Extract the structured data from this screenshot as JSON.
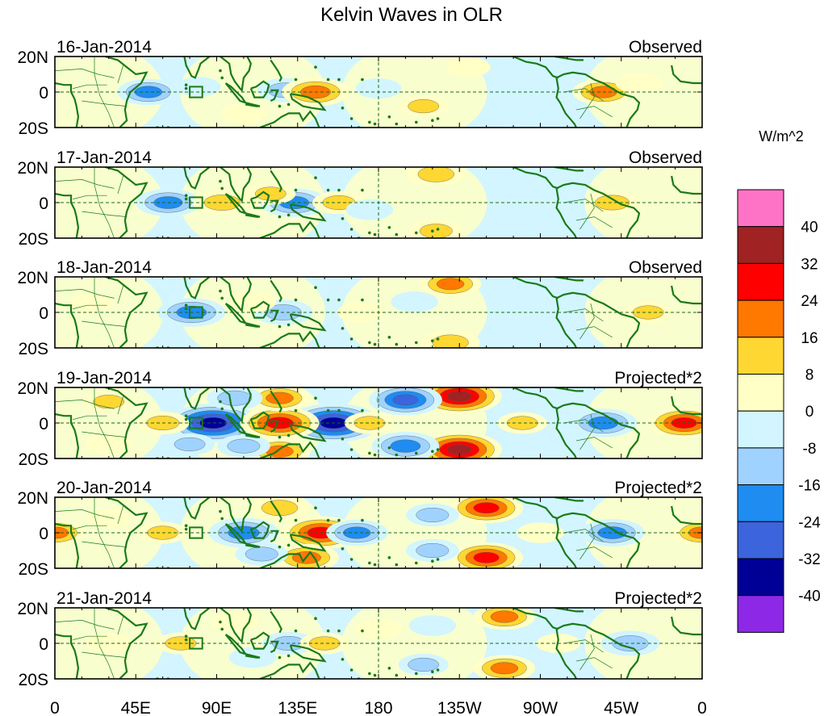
{
  "chart_data": {
    "type": "heatmap",
    "title": "Kelvin Waves in OLR",
    "units": "W/m^2",
    "x_tick_labels": [
      "0",
      "45E",
      "90E",
      "135E",
      "180",
      "135W",
      "90W",
      "45W",
      "0"
    ],
    "x_tick_values_deg": [
      0,
      45,
      90,
      135,
      180,
      225,
      270,
      315,
      360
    ],
    "xlim_deg": [
      0,
      360
    ],
    "y_tick_labels": [
      "20N",
      "0",
      "20S"
    ],
    "y_tick_values_deg": [
      20,
      0,
      -20
    ],
    "ylim_deg": [
      -20,
      20
    ],
    "colorbar": {
      "levels": [
        "40",
        "32",
        "24",
        "16",
        "8",
        "0",
        "-8",
        "-16",
        "-24",
        "-32",
        "-40"
      ],
      "colors": [
        "#ff73c7",
        "#a02222",
        "#ff0000",
        "#ff7800",
        "#ffd733",
        "#ffffc6",
        "#d2f5ff",
        "#a0d2ff",
        "#1e8cf0",
        "#3c64dc",
        "#000096",
        "#8c28e6"
      ]
    },
    "panels": [
      {
        "date": "16-Jan-2014",
        "label": "Observed",
        "anomalies": [
          {
            "lon": 52,
            "lat": 0,
            "value": -18
          },
          {
            "lon": 128,
            "lat": 1,
            "value": -14
          },
          {
            "lon": 145,
            "lat": 0,
            "value": 22
          },
          {
            "lon": 105,
            "lat": -12,
            "value": 8
          },
          {
            "lon": 205,
            "lat": -8,
            "value": 10
          },
          {
            "lon": 230,
            "lat": 14,
            "value": 6
          },
          {
            "lon": 305,
            "lat": 0,
            "value": 18
          },
          {
            "lon": 325,
            "lat": 5,
            "value": 8
          },
          {
            "lon": 180,
            "lat": 2,
            "value": -7
          },
          {
            "lon": 80,
            "lat": 3,
            "value": -6
          }
        ]
      },
      {
        "date": "17-Jan-2014",
        "label": "Observed",
        "anomalies": [
          {
            "lon": 63,
            "lat": 0,
            "value": -20
          },
          {
            "lon": 93,
            "lat": 0,
            "value": 16
          },
          {
            "lon": 133,
            "lat": 0,
            "value": -22
          },
          {
            "lon": 120,
            "lat": 5,
            "value": 10
          },
          {
            "lon": 158,
            "lat": 0,
            "value": 12
          },
          {
            "lon": 212,
            "lat": 16,
            "value": 16
          },
          {
            "lon": 212,
            "lat": -16,
            "value": 12
          },
          {
            "lon": 310,
            "lat": 0,
            "value": 14
          },
          {
            "lon": 270,
            "lat": 2,
            "value": -7
          },
          {
            "lon": 175,
            "lat": -4,
            "value": -8
          }
        ]
      },
      {
        "date": "18-Jan-2014",
        "label": "Observed",
        "anomalies": [
          {
            "lon": 76,
            "lat": 0,
            "value": -22
          },
          {
            "lon": 127,
            "lat": 0,
            "value": -16
          },
          {
            "lon": 110,
            "lat": 6,
            "value": 8
          },
          {
            "lon": 220,
            "lat": 16,
            "value": 18
          },
          {
            "lon": 220,
            "lat": -17,
            "value": 16
          },
          {
            "lon": 170,
            "lat": 0,
            "value": 8
          },
          {
            "lon": 330,
            "lat": 0,
            "value": 10
          },
          {
            "lon": 200,
            "lat": 6,
            "value": -8
          },
          {
            "lon": 20,
            "lat": 5,
            "value": 6
          },
          {
            "lon": 270,
            "lat": -5,
            "value": -6
          }
        ]
      },
      {
        "date": "19-Jan-2014",
        "label": "Projected*2",
        "anomalies": [
          {
            "lon": 88,
            "lat": 0,
            "value": -40
          },
          {
            "lon": 155,
            "lat": 0,
            "value": -40
          },
          {
            "lon": 125,
            "lat": 0,
            "value": 30
          },
          {
            "lon": 125,
            "lat": 14,
            "value": 18
          },
          {
            "lon": 125,
            "lat": -16,
            "value": 18
          },
          {
            "lon": 225,
            "lat": 15,
            "value": 34
          },
          {
            "lon": 225,
            "lat": -15,
            "value": 34
          },
          {
            "lon": 195,
            "lat": 13,
            "value": -26
          },
          {
            "lon": 195,
            "lat": -13,
            "value": -22
          },
          {
            "lon": 305,
            "lat": 0,
            "value": -22
          },
          {
            "lon": 350,
            "lat": 0,
            "value": 26
          },
          {
            "lon": 100,
            "lat": 14,
            "value": -14
          },
          {
            "lon": 105,
            "lat": -13,
            "value": -12
          },
          {
            "lon": 60,
            "lat": 0,
            "value": 12
          },
          {
            "lon": 30,
            "lat": 12,
            "value": 10
          },
          {
            "lon": 30,
            "lat": -12,
            "value": 8
          },
          {
            "lon": 260,
            "lat": 0,
            "value": 10
          },
          {
            "lon": 175,
            "lat": 0,
            "value": 10
          },
          {
            "lon": 75,
            "lat": -12,
            "value": -10
          }
        ]
      },
      {
        "date": "20-Jan-2014",
        "label": "Projected*2",
        "anomalies": [
          {
            "lon": 105,
            "lat": 0,
            "value": -24
          },
          {
            "lon": 148,
            "lat": 0,
            "value": 30
          },
          {
            "lon": 140,
            "lat": -14,
            "value": 20
          },
          {
            "lon": 125,
            "lat": 14,
            "value": 16
          },
          {
            "lon": 240,
            "lat": 14,
            "value": 26
          },
          {
            "lon": 240,
            "lat": -14,
            "value": 26
          },
          {
            "lon": 0,
            "lat": 0,
            "value": 18
          },
          {
            "lon": 360,
            "lat": 0,
            "value": 18
          },
          {
            "lon": 310,
            "lat": 0,
            "value": -20
          },
          {
            "lon": 168,
            "lat": 0,
            "value": -18
          },
          {
            "lon": 210,
            "lat": 10,
            "value": -12
          },
          {
            "lon": 210,
            "lat": -10,
            "value": -12
          },
          {
            "lon": 60,
            "lat": 0,
            "value": 10
          },
          {
            "lon": 270,
            "lat": 0,
            "value": 8
          },
          {
            "lon": 115,
            "lat": -12,
            "value": -12
          },
          {
            "lon": 30,
            "lat": 8,
            "value": 6
          }
        ]
      },
      {
        "date": "21-Jan-2014",
        "label": "Projected*2",
        "anomalies": [
          {
            "lon": 250,
            "lat": 15,
            "value": 18
          },
          {
            "lon": 250,
            "lat": -14,
            "value": 18
          },
          {
            "lon": 320,
            "lat": 0,
            "value": -16
          },
          {
            "lon": 180,
            "lat": 8,
            "value": 8
          },
          {
            "lon": 130,
            "lat": 0,
            "value": -12
          },
          {
            "lon": 150,
            "lat": 0,
            "value": 10
          },
          {
            "lon": 30,
            "lat": 0,
            "value": 8
          },
          {
            "lon": 70,
            "lat": 0,
            "value": 10
          },
          {
            "lon": 100,
            "lat": 12,
            "value": 8
          },
          {
            "lon": 205,
            "lat": -12,
            "value": -10
          },
          {
            "lon": 210,
            "lat": 10,
            "value": -8
          },
          {
            "lon": 110,
            "lat": -8,
            "value": -8
          },
          {
            "lon": 280,
            "lat": 0,
            "value": 6
          }
        ]
      }
    ]
  }
}
